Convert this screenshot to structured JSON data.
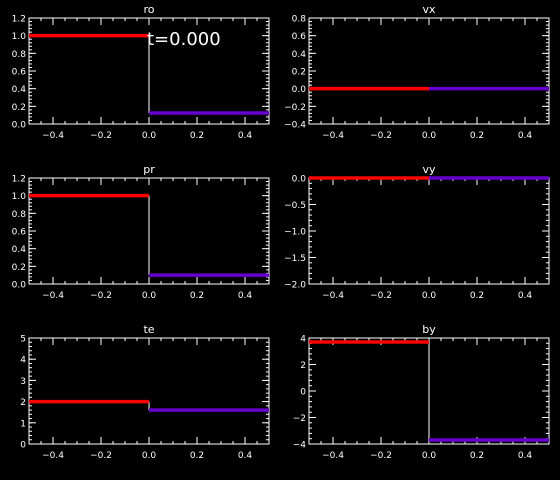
{
  "time_label": "t=0.000",
  "colors": {
    "background": "#000000",
    "axes": "#ffffff",
    "left_state": "#ff0000",
    "right_state": "#6600cc",
    "connector": "#ffffff"
  },
  "chart_data": [
    {
      "type": "line",
      "title": "ro",
      "xlim": [
        -0.5,
        0.5
      ],
      "ylim": [
        0.0,
        1.2
      ],
      "xticks": [
        -0.4,
        -0.2,
        0.0,
        0.2,
        0.4
      ],
      "xtick_labels": [
        "−0.4",
        "−0.2",
        "0.0",
        "0.2",
        "0.4"
      ],
      "yticks": [
        0.0,
        0.2,
        0.4,
        0.6,
        0.8,
        1.0,
        1.2
      ],
      "ytick_labels": [
        "0.0",
        "0.2",
        "0.4",
        "0.6",
        "0.8",
        "1.0",
        "1.2"
      ],
      "series": [
        {
          "x": [
            -0.5,
            0.0
          ],
          "y": [
            1.0,
            1.0
          ],
          "color": "#ff0000"
        },
        {
          "x": [
            0.0,
            0.5
          ],
          "y": [
            0.125,
            0.125
          ],
          "color": "#6600cc"
        }
      ],
      "discontinuity_x": 0.0
    },
    {
      "type": "line",
      "title": "vx",
      "xlim": [
        -0.5,
        0.5
      ],
      "ylim": [
        -0.4,
        0.8
      ],
      "xticks": [
        -0.4,
        -0.2,
        0.0,
        0.2,
        0.4
      ],
      "xtick_labels": [
        "−0.4",
        "−0.2",
        "0.0",
        "0.2",
        "0.4"
      ],
      "yticks": [
        -0.4,
        -0.2,
        0.0,
        0.2,
        0.4,
        0.6,
        0.8
      ],
      "ytick_labels": [
        "−0.4",
        "−0.2",
        "0.0",
        "0.2",
        "0.4",
        "0.6",
        "0.8"
      ],
      "series": [
        {
          "x": [
            -0.5,
            0.0
          ],
          "y": [
            0.0,
            0.0
          ],
          "color": "#ff0000"
        },
        {
          "x": [
            0.0,
            0.5
          ],
          "y": [
            0.0,
            0.0
          ],
          "color": "#6600cc"
        }
      ],
      "discontinuity_x": null
    },
    {
      "type": "line",
      "title": "pr",
      "xlim": [
        -0.5,
        0.5
      ],
      "ylim": [
        0.0,
        1.2
      ],
      "xticks": [
        -0.4,
        -0.2,
        0.0,
        0.2,
        0.4
      ],
      "xtick_labels": [
        "−0.4",
        "−0.2",
        "0.0",
        "0.2",
        "0.4"
      ],
      "yticks": [
        0.0,
        0.2,
        0.4,
        0.6,
        0.8,
        1.0,
        1.2
      ],
      "ytick_labels": [
        "0.0",
        "0.2",
        "0.4",
        "0.6",
        "0.8",
        "1.0",
        "1.2"
      ],
      "series": [
        {
          "x": [
            -0.5,
            0.0
          ],
          "y": [
            1.0,
            1.0
          ],
          "color": "#ff0000"
        },
        {
          "x": [
            0.0,
            0.5
          ],
          "y": [
            0.1,
            0.1
          ],
          "color": "#6600cc"
        }
      ],
      "discontinuity_x": 0.0
    },
    {
      "type": "line",
      "title": "vy",
      "xlim": [
        -0.5,
        0.5
      ],
      "ylim": [
        -2.0,
        0.0
      ],
      "xticks": [
        -0.4,
        -0.2,
        0.0,
        0.2,
        0.4
      ],
      "xtick_labels": [
        "−0.4",
        "−0.2",
        "0.0",
        "0.2",
        "0.4"
      ],
      "yticks": [
        -2.0,
        -1.5,
        -1.0,
        -0.5,
        0.0
      ],
      "ytick_labels": [
        "−2.0",
        "−1.5",
        "−1.0",
        "−0.5",
        "0.0"
      ],
      "series": [
        {
          "x": [
            -0.5,
            0.0
          ],
          "y": [
            0.0,
            0.0
          ],
          "color": "#ff0000"
        },
        {
          "x": [
            0.0,
            0.5
          ],
          "y": [
            0.0,
            0.0
          ],
          "color": "#6600cc"
        }
      ],
      "discontinuity_x": null
    },
    {
      "type": "line",
      "title": "te",
      "xlim": [
        -0.5,
        0.5
      ],
      "ylim": [
        0,
        5
      ],
      "xticks": [
        -0.4,
        -0.2,
        0.0,
        0.2,
        0.4
      ],
      "xtick_labels": [
        "−0.4",
        "−0.2",
        "0.0",
        "0.2",
        "0.4"
      ],
      "yticks": [
        0,
        1,
        2,
        3,
        4,
        5
      ],
      "ytick_labels": [
        "0",
        "1",
        "2",
        "3",
        "4",
        "5"
      ],
      "series": [
        {
          "x": [
            -0.5,
            0.0
          ],
          "y": [
            2.0,
            2.0
          ],
          "color": "#ff0000"
        },
        {
          "x": [
            0.0,
            0.5
          ],
          "y": [
            1.6,
            1.6
          ],
          "color": "#6600cc"
        }
      ],
      "discontinuity_x": 0.0
    },
    {
      "type": "line",
      "title": "by",
      "xlim": [
        -0.5,
        0.5
      ],
      "ylim": [
        -4,
        4
      ],
      "xticks": [
        -0.4,
        -0.2,
        0.0,
        0.2,
        0.4
      ],
      "xtick_labels": [
        "−0.4",
        "−0.2",
        "0.0",
        "0.2",
        "0.4"
      ],
      "yticks": [
        -4,
        -2,
        0,
        2,
        4
      ],
      "ytick_labels": [
        "−4",
        "−2",
        "0",
        "2",
        "4"
      ],
      "series": [
        {
          "x": [
            -0.5,
            0.0
          ],
          "y": [
            3.7,
            3.7
          ],
          "color": "#ff0000"
        },
        {
          "x": [
            0.0,
            0.5
          ],
          "y": [
            -3.7,
            -3.7
          ],
          "color": "#6600cc"
        }
      ],
      "discontinuity_x": 0.0
    }
  ]
}
